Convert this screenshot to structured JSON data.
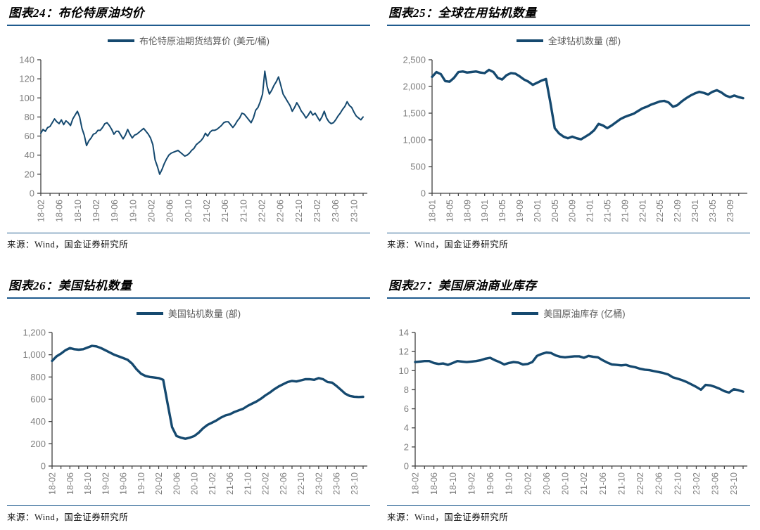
{
  "source_note": "来源：Wind，国金证券研究所",
  "colors": {
    "line": "#15496F",
    "rule": "#1F5B8E",
    "axis": "#404040",
    "tick_label": "#7F7F7F",
    "legend_text": "#595959",
    "title_text": "#000000",
    "background": "#FFFFFF"
  },
  "chart_data": [
    {
      "figure_label": "图表24：布伦特原油均价",
      "type": "line",
      "legend": "布伦特原油期货结算价 (美元/桶)",
      "x_start": "2018-02",
      "x_end": "2023-12",
      "months": 71,
      "points_per_month": 2,
      "x_tick_labels": [
        "18-02",
        "18-06",
        "18-10",
        "19-02",
        "19-06",
        "19-10",
        "20-02",
        "20-06",
        "20-10",
        "21-02",
        "21-06",
        "21-10",
        "22-02",
        "22-06",
        "22-10",
        "23-02",
        "23-06",
        "23-10"
      ],
      "y_tick_values": [
        0,
        20,
        40,
        60,
        80,
        100,
        120,
        140
      ],
      "y_tick_labels": [
        "0",
        "20",
        "40",
        "60",
        "80",
        "100",
        "120",
        "140"
      ],
      "ylim": [
        0,
        140
      ],
      "grid": false,
      "legend_position": "top-center",
      "line_width": 2,
      "values": [
        63,
        67,
        65,
        69,
        70,
        74,
        78,
        75,
        73,
        77,
        72,
        76,
        74,
        71,
        78,
        82,
        86,
        80,
        68,
        61,
        50,
        55,
        58,
        62,
        63,
        66,
        66,
        69,
        73,
        74,
        71,
        67,
        62,
        65,
        65,
        61,
        57,
        61,
        67,
        62,
        58,
        61,
        62,
        64,
        66,
        68,
        65,
        62,
        58,
        51,
        35,
        28,
        20,
        25,
        31,
        36,
        40,
        42,
        43,
        44,
        45,
        43,
        41,
        39,
        40,
        42,
        45,
        47,
        51,
        53,
        55,
        58,
        63,
        60,
        64,
        66,
        66,
        67,
        69,
        71,
        74,
        75,
        75,
        72,
        69,
        72,
        76,
        79,
        84,
        83,
        80,
        77,
        74,
        79,
        87,
        90,
        96,
        104,
        128,
        112,
        104,
        108,
        113,
        117,
        122,
        113,
        104,
        100,
        96,
        92,
        86,
        90,
        95,
        91,
        86,
        83,
        79,
        82,
        86,
        82,
        84,
        80,
        76,
        80,
        86,
        79,
        75,
        73,
        74,
        77,
        81,
        84,
        88,
        91,
        96,
        92,
        90,
        85,
        81,
        79,
        77,
        80
      ]
    },
    {
      "figure_label": "图表25：全球在用钻机数量",
      "type": "line",
      "legend": "全球钻机数量 (部)",
      "x_start": "2018-01",
      "x_end": "2023-12",
      "months": 72,
      "points_per_month": 1,
      "x_tick_labels": [
        "18-01",
        "18-05",
        "18-09",
        "19-01",
        "19-05",
        "19-09",
        "20-01",
        "20-05",
        "20-09",
        "21-01",
        "21-05",
        "21-09",
        "22-01",
        "22-05",
        "22-09",
        "23-01",
        "23-05",
        "23-09"
      ],
      "y_tick_values": [
        0,
        500,
        1000,
        1500,
        2000,
        2500
      ],
      "y_tick_labels": [
        "0",
        "500",
        "1,000",
        "1,500",
        "2,000",
        "2,500"
      ],
      "ylim": [
        0,
        2500
      ],
      "grid": false,
      "legend_position": "top-center",
      "line_width": 3.4,
      "values": [
        2180,
        2270,
        2230,
        2100,
        2090,
        2160,
        2270,
        2280,
        2260,
        2270,
        2280,
        2260,
        2250,
        2310,
        2270,
        2160,
        2130,
        2210,
        2250,
        2240,
        2190,
        2130,
        2090,
        2030,
        2070,
        2110,
        2140,
        1700,
        1220,
        1120,
        1060,
        1030,
        1060,
        1030,
        1010,
        1060,
        1110,
        1180,
        1300,
        1270,
        1220,
        1270,
        1330,
        1390,
        1430,
        1460,
        1490,
        1540,
        1590,
        1620,
        1660,
        1690,
        1720,
        1730,
        1700,
        1620,
        1650,
        1720,
        1780,
        1830,
        1870,
        1900,
        1880,
        1850,
        1900,
        1930,
        1890,
        1830,
        1800,
        1830,
        1800,
        1780
      ]
    },
    {
      "figure_label": "图表26：美国钻机数量",
      "type": "line",
      "legend": "美国钻机数量 (部)",
      "x_start": "2018-02",
      "x_end": "2023-12",
      "months": 71,
      "points_per_month": 1,
      "x_tick_labels": [
        "18-02",
        "18-06",
        "18-10",
        "19-02",
        "19-06",
        "19-10",
        "20-02",
        "20-06",
        "20-10",
        "21-02",
        "21-06",
        "21-10",
        "22-02",
        "22-06",
        "22-10",
        "23-02",
        "23-06",
        "23-10"
      ],
      "y_tick_values": [
        0,
        200,
        400,
        600,
        800,
        1000,
        1200
      ],
      "y_tick_labels": [
        "0",
        "200",
        "400",
        "600",
        "800",
        "1,000",
        "1,200"
      ],
      "ylim": [
        0,
        1200
      ],
      "grid": false,
      "legend_position": "top-center",
      "line_width": 3.4,
      "values": [
        945,
        985,
        1010,
        1040,
        1060,
        1050,
        1045,
        1050,
        1065,
        1080,
        1075,
        1060,
        1040,
        1020,
        1000,
        985,
        970,
        955,
        920,
        870,
        830,
        810,
        800,
        795,
        790,
        775,
        560,
        350,
        270,
        255,
        245,
        255,
        270,
        300,
        340,
        370,
        390,
        410,
        435,
        455,
        465,
        485,
        500,
        515,
        540,
        560,
        580,
        605,
        635,
        660,
        690,
        715,
        735,
        755,
        765,
        760,
        770,
        780,
        780,
        775,
        790,
        780,
        755,
        750,
        720,
        685,
        650,
        630,
        623,
        620,
        622
      ]
    },
    {
      "figure_label": "图表27：美国原油商业库存",
      "type": "line",
      "legend": "美国原油库存 (亿桶)",
      "x_start": "2018-02",
      "x_end": "2023-12",
      "months": 71,
      "points_per_month": 1,
      "x_tick_labels": [
        "18-02",
        "18-06",
        "18-10",
        "19-02",
        "19-06",
        "19-10",
        "20-02",
        "20-06",
        "20-10",
        "21-02",
        "21-06",
        "21-10",
        "22-02",
        "22-06",
        "22-10",
        "23-02",
        "23-06",
        "23-10"
      ],
      "y_tick_values": [
        0,
        2,
        4,
        6,
        8,
        10,
        12,
        14
      ],
      "y_tick_labels": [
        "0",
        "2",
        "4",
        "6",
        "8",
        "10",
        "12",
        "14"
      ],
      "ylim": [
        0,
        14
      ],
      "grid": false,
      "legend_position": "top-center",
      "line_width": 3.4,
      "values": [
        10.9,
        10.95,
        11.0,
        11.0,
        10.8,
        10.7,
        10.75,
        10.6,
        10.8,
        11.0,
        10.95,
        10.9,
        10.95,
        11.0,
        11.1,
        11.25,
        11.35,
        11.1,
        10.9,
        10.65,
        10.8,
        10.9,
        10.85,
        10.65,
        10.7,
        10.9,
        11.55,
        11.75,
        11.9,
        11.85,
        11.6,
        11.45,
        11.4,
        11.45,
        11.5,
        11.5,
        11.35,
        11.55,
        11.45,
        11.4,
        11.1,
        10.85,
        10.65,
        10.6,
        10.55,
        10.6,
        10.45,
        10.35,
        10.2,
        10.1,
        10.05,
        9.95,
        9.85,
        9.75,
        9.6,
        9.3,
        9.15,
        9.0,
        8.8,
        8.55,
        8.3,
        8.0,
        8.5,
        8.45,
        8.3,
        8.1,
        7.85,
        7.7,
        8.05,
        7.95,
        7.8
      ]
    }
  ]
}
